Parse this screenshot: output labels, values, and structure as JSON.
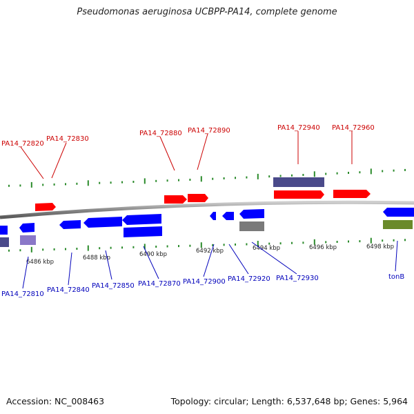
{
  "title": "Pseudomonas aeruginosa UCBPP-PA14, complete genome",
  "footer": {
    "accession": "Accession: NC_008463",
    "summary": "Topology: circular; Length: 6,537,648 bp; Genes: 5,964"
  },
  "colors": {
    "forward_gene": "#ff0000",
    "reverse_gene": "#0000ff",
    "backbone": "#888888",
    "tick": "#2a8a2a",
    "top_label": "#cc0000",
    "bottom_label": "#0000bb",
    "feature_purple": "#4a4a8a",
    "feature_light_purple": "#8a78c8",
    "feature_gray": "#7a7a7a",
    "feature_olive": "#6a8a2a"
  },
  "scale_labels": [
    "6486 kbp",
    "6488 kbp",
    "6490 kbp",
    "6492 kbp",
    "6494 kbp",
    "6496 kbp",
    "6498 kbp"
  ],
  "top_gene_labels": [
    "PA14_72820",
    "PA14_72830",
    "PA14_72880",
    "PA14_72890",
    "PA14_72940",
    "PA14_72960"
  ],
  "bottom_gene_labels": [
    "PA14_72810",
    "PA14_72840",
    "PA14_72850",
    "PA14_72870",
    "PA14_72900",
    "PA14_72920",
    "PA14_72930",
    "tonB"
  ]
}
